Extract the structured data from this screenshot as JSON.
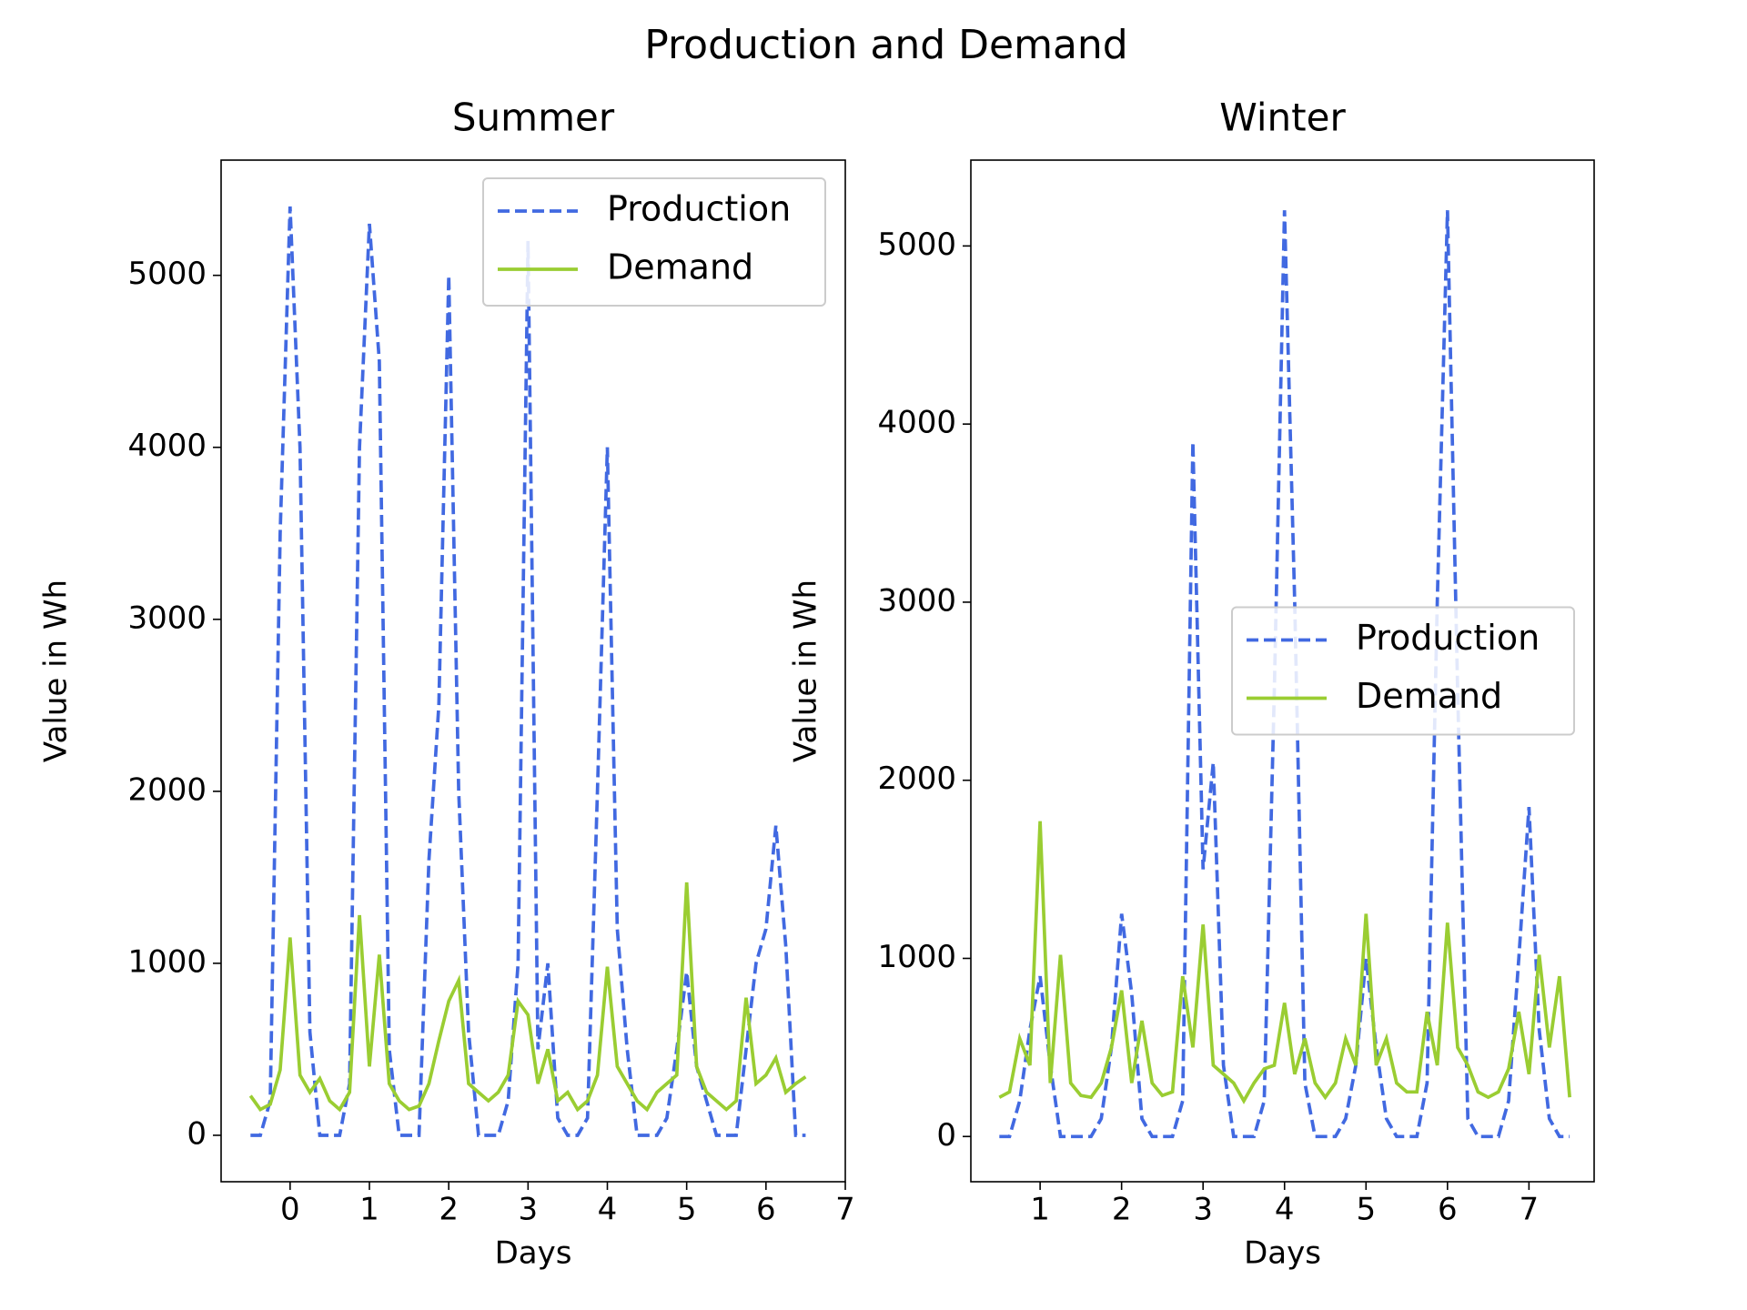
{
  "title": "Production and Demand",
  "chart_data": [
    {
      "type": "line",
      "title": "Summer",
      "x_label": "Days",
      "y_label": "Value in Wh",
      "x": [
        -0.5,
        -0.375,
        -0.25,
        -0.125,
        0,
        0.125,
        0.25,
        0.375,
        0.5,
        0.625,
        0.75,
        0.875,
        1,
        1.125,
        1.25,
        1.375,
        1.5,
        1.625,
        1.75,
        1.875,
        2,
        2.125,
        2.25,
        2.375,
        2.5,
        2.625,
        2.75,
        2.875,
        3,
        3.125,
        3.25,
        3.375,
        3.5,
        3.625,
        3.75,
        3.875,
        4,
        4.125,
        4.25,
        4.375,
        4.5,
        4.625,
        4.75,
        4.875,
        5,
        5.125,
        5.25,
        5.375,
        5.5,
        5.625,
        5.75,
        5.875,
        6,
        6.125,
        6.25,
        6.375,
        6.5
      ],
      "series": [
        {
          "name": "Production",
          "color": "#4169e1",
          "dashed": true,
          "values": [
            0,
            0,
            200,
            3500,
            5400,
            4000,
            600,
            0,
            0,
            0,
            300,
            4000,
            5300,
            4500,
            500,
            0,
            0,
            0,
            1600,
            2500,
            5000,
            2000,
            600,
            0,
            0,
            0,
            200,
            1000,
            5200,
            500,
            1000,
            100,
            0,
            0,
            100,
            2000,
            4000,
            1200,
            500,
            0,
            0,
            0,
            100,
            500,
            950,
            400,
            200,
            0,
            0,
            0,
            500,
            1000,
            1200,
            1800,
            1100,
            0,
            0
          ]
        },
        {
          "name": "Demand",
          "color": "#9acd32",
          "dashed": false,
          "values": [
            230,
            150,
            180,
            380,
            1150,
            350,
            250,
            330,
            200,
            150,
            250,
            1280,
            400,
            1050,
            300,
            200,
            150,
            170,
            300,
            550,
            780,
            900,
            300,
            250,
            200,
            250,
            350,
            780,
            700,
            300,
            500,
            200,
            250,
            150,
            200,
            350,
            980,
            400,
            300,
            200,
            150,
            250,
            300,
            350,
            1470,
            400,
            250,
            200,
            150,
            200,
            800,
            300,
            350,
            450,
            250,
            300,
            340
          ]
        }
      ],
      "xlim": [
        -0.87,
        7.0
      ],
      "ylim": [
        -270,
        5670
      ],
      "xticks": [
        0,
        1,
        2,
        3,
        4,
        5,
        6,
        7
      ],
      "yticks": [
        0,
        1000,
        2000,
        3000,
        4000,
        5000
      ],
      "legend": "upper right"
    },
    {
      "type": "line",
      "title": "Winter",
      "x_label": "Days",
      "y_label": "Value in Wh",
      "x": [
        0.5,
        0.625,
        0.75,
        0.875,
        1,
        1.125,
        1.25,
        1.375,
        1.5,
        1.625,
        1.75,
        1.875,
        2,
        2.125,
        2.25,
        2.375,
        2.5,
        2.625,
        2.75,
        2.875,
        3,
        3.125,
        3.25,
        3.375,
        3.5,
        3.625,
        3.75,
        3.875,
        4,
        4.125,
        4.25,
        4.375,
        4.5,
        4.625,
        4.75,
        4.875,
        5,
        5.125,
        5.25,
        5.375,
        5.5,
        5.625,
        5.75,
        5.875,
        6,
        6.125,
        6.25,
        6.375,
        6.5,
        6.625,
        6.75,
        6.875,
        7,
        7.125,
        7.25,
        7.375,
        7.5
      ],
      "series": [
        {
          "name": "Production",
          "color": "#4169e1",
          "dashed": true,
          "values": [
            0,
            0,
            200,
            600,
            900,
            400,
            0,
            0,
            0,
            0,
            100,
            500,
            1250,
            800,
            100,
            0,
            0,
            0,
            200,
            3900,
            1500,
            2100,
            400,
            0,
            0,
            0,
            200,
            2500,
            5200,
            3000,
            300,
            0,
            0,
            0,
            100,
            400,
            1000,
            500,
            100,
            0,
            0,
            0,
            300,
            3000,
            5200,
            2500,
            100,
            0,
            0,
            0,
            200,
            1000,
            1850,
            600,
            100,
            0,
            0
          ]
        },
        {
          "name": "Demand",
          "color": "#9acd32",
          "dashed": false,
          "values": [
            220,
            250,
            550,
            400,
            1770,
            300,
            1020,
            300,
            230,
            220,
            300,
            500,
            820,
            300,
            650,
            300,
            230,
            250,
            900,
            500,
            1190,
            400,
            350,
            300,
            200,
            300,
            380,
            400,
            750,
            350,
            550,
            300,
            220,
            300,
            550,
            400,
            1250,
            400,
            550,
            300,
            250,
            250,
            700,
            400,
            1200,
            500,
            400,
            250,
            220,
            250,
            380,
            700,
            350,
            1020,
            500,
            900,
            220
          ]
        }
      ],
      "xlim": [
        0.15,
        7.8
      ],
      "ylim": [
        -254,
        5482
      ],
      "xticks": [
        1,
        2,
        3,
        4,
        5,
        6,
        7
      ],
      "yticks": [
        0,
        1000,
        2000,
        3000,
        4000,
        5000
      ],
      "legend": "center right"
    }
  ]
}
